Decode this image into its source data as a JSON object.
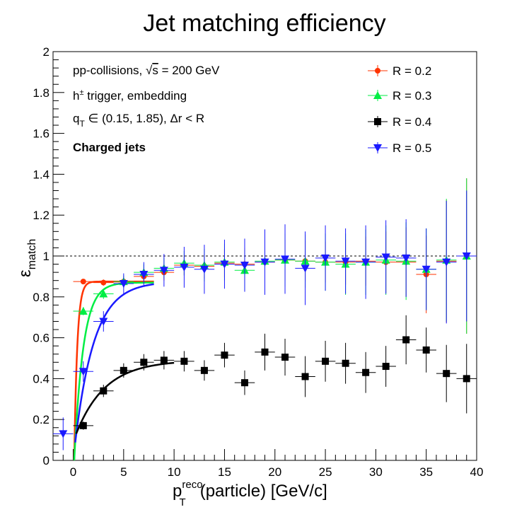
{
  "chart_data": {
    "type": "scatter",
    "title": "Jet matching efficiency",
    "xlabel": {
      "main": "p",
      "sub": "T",
      "sup": "reco",
      "rest": "(particle) [GeV/c]"
    },
    "ylabel": {
      "main": "ε",
      "sub": "match"
    },
    "xlim": [
      -2,
      40
    ],
    "ylim": [
      0,
      2
    ],
    "x_ticks": [
      0,
      5,
      10,
      15,
      20,
      25,
      30,
      35,
      40
    ],
    "y_ticks": [
      0,
      0.2,
      0.4,
      0.6,
      0.8,
      1,
      1.2,
      1.4,
      1.6,
      1.8,
      2
    ],
    "y_tick_labels": [
      "0",
      "0.2",
      "0.4",
      "0.6",
      "0.8",
      "1",
      "1.2",
      "1.4",
      "1.6",
      "1.8",
      "2"
    ],
    "x_tick_labels": [
      "0",
      "5",
      "10",
      "15",
      "20",
      "25",
      "30",
      "35",
      "40"
    ],
    "reference_line": {
      "y": 1,
      "style": "dashed"
    },
    "annotations": {
      "line1_a": "pp-collisions, ",
      "line1_sqrt": "√",
      "line1_s": "s",
      "line1_b": " = 200 GeV",
      "line2_h": "h",
      "line2_pm": "±",
      "line2_rest": " trigger, embedding",
      "line3_q": "q",
      "line3_sub": "T",
      "line3_rest": " ∈ (0.15, 1.85), Δr < R",
      "line4": "Charged jets"
    },
    "legend_position": "top-right",
    "series": [
      {
        "name": "R = 0.2",
        "color": "#ff3300",
        "marker": "circle",
        "x": [
          1,
          3,
          5,
          7,
          9,
          11,
          13,
          15,
          17,
          19,
          21,
          23,
          25,
          27,
          29,
          31,
          33,
          35,
          37,
          39
        ],
        "y": [
          0.875,
          0.87,
          0.875,
          0.9,
          0.92,
          0.955,
          0.95,
          0.965,
          0.96,
          0.97,
          0.98,
          0.975,
          0.97,
          0.97,
          0.975,
          0.97,
          0.97,
          0.91,
          0.975,
          1.0
        ],
        "yerr": [
          0.01,
          0.015,
          0.02,
          0.03,
          0.04,
          0.05,
          0.06,
          0.07,
          0.08,
          0.09,
          0.1,
          0.1,
          0.1,
          0.11,
          0.12,
          0.15,
          0.17,
          0.19,
          0.3,
          0.38
        ]
      },
      {
        "name": "R = 0.3",
        "color": "#00ee44",
        "marker": "triangle-up",
        "x": [
          1,
          3,
          5,
          7,
          9,
          11,
          13,
          15,
          17,
          19,
          21,
          23,
          25,
          27,
          29,
          31,
          33,
          35,
          37,
          39
        ],
        "y": [
          0.73,
          0.815,
          0.875,
          0.92,
          0.94,
          0.965,
          0.955,
          0.97,
          0.93,
          0.975,
          0.98,
          0.975,
          0.97,
          0.96,
          0.97,
          0.98,
          0.975,
          0.935,
          0.98,
          1.0
        ],
        "yerr": [
          0.02,
          0.025,
          0.03,
          0.04,
          0.05,
          0.06,
          0.08,
          0.09,
          0.1,
          0.12,
          0.13,
          0.13,
          0.14,
          0.15,
          0.16,
          0.17,
          0.19,
          0.2,
          0.3,
          0.38
        ]
      },
      {
        "name": "R = 0.4",
        "color": "#000000",
        "marker": "square",
        "x": [
          1,
          3,
          5,
          7,
          9,
          11,
          13,
          15,
          17,
          19,
          21,
          23,
          25,
          27,
          29,
          31,
          33,
          35,
          37,
          39
        ],
        "y": [
          0.17,
          0.34,
          0.44,
          0.48,
          0.49,
          0.485,
          0.44,
          0.515,
          0.38,
          0.53,
          0.505,
          0.41,
          0.485,
          0.475,
          0.43,
          0.46,
          0.59,
          0.54,
          0.425,
          0.4
        ],
        "yerr": [
          0.02,
          0.03,
          0.035,
          0.04,
          0.045,
          0.05,
          0.05,
          0.06,
          0.06,
          0.09,
          0.09,
          0.1,
          0.1,
          0.1,
          0.1,
          0.1,
          0.12,
          0.11,
          0.14,
          0.17
        ]
      },
      {
        "name": "R = 0.5",
        "color": "#1a1aff",
        "marker": "triangle-down",
        "x": [
          -1,
          1,
          3,
          5,
          7,
          9,
          11,
          13,
          15,
          17,
          19,
          21,
          23,
          25,
          27,
          29,
          31,
          33,
          35,
          37,
          39
        ],
        "y": [
          0.13,
          0.435,
          0.68,
          0.865,
          0.91,
          0.93,
          0.945,
          0.935,
          0.96,
          0.955,
          0.97,
          0.985,
          0.94,
          0.99,
          0.975,
          0.97,
          0.995,
          0.99,
          0.935,
          0.97,
          1.0
        ],
        "yerr": [
          0.08,
          0.05,
          0.05,
          0.05,
          0.06,
          0.08,
          0.1,
          0.12,
          0.12,
          0.13,
          0.16,
          0.17,
          0.18,
          0.16,
          0.16,
          0.18,
          0.18,
          0.19,
          0.2,
          0.3,
          0.32
        ]
      }
    ],
    "fits": [
      {
        "series": "R = 0.2",
        "color": "#ff3300",
        "plateau": 0.875,
        "onset": 0.1,
        "scale": 0.3,
        "x_range": [
          0.1,
          8
        ]
      },
      {
        "series": "R = 0.3",
        "color": "#00ee44",
        "plateau": 0.87,
        "onset": 0.1,
        "scale": 0.9,
        "x_range": [
          0.1,
          8
        ]
      },
      {
        "series": "R = 0.5",
        "color": "#1a1aff",
        "plateau": 0.875,
        "onset": 0.0,
        "scale": 1.9,
        "x_range": [
          0.2,
          8
        ]
      },
      {
        "series": "R = 0.4",
        "color": "#000000",
        "plateau": 0.49,
        "onset": -0.6,
        "scale": 2.9,
        "x_range": [
          0.3,
          10
        ]
      }
    ]
  }
}
